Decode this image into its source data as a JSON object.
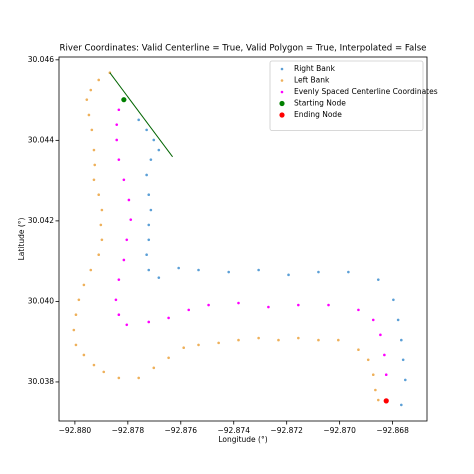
{
  "chart_data": {
    "type": "scatter",
    "title": "River Coordinates: Valid Centerline = True, Valid Polygon = True, Interpolated = False",
    "x_label": "Longitude (°)",
    "y_label": "Latitude (°)",
    "xlim": [
      -92.8806,
      -92.8667
    ],
    "ylim": [
      30.03703,
      30.04607
    ],
    "xticks": [
      {
        "value": -92.88,
        "label": "−92.880"
      },
      {
        "value": -92.878,
        "label": "−92.878"
      },
      {
        "value": -92.876,
        "label": "−92.876"
      },
      {
        "value": -92.874,
        "label": "−92.874"
      },
      {
        "value": -92.872,
        "label": "−92.872"
      },
      {
        "value": -92.87,
        "label": "−92.870"
      },
      {
        "value": -92.868,
        "label": "−92.868"
      }
    ],
    "yticks": [
      30.038,
      {
        "value": 30.04,
        "label": "30.040"
      },
      30.042,
      30.044,
      30.046
    ],
    "legend": "upper right",
    "series": [
      {
        "name": "Right Bank",
        "color": "#5b9fd6",
        "x": [
          -92.87759,
          -92.87729,
          -92.87702,
          -92.87683,
          -92.87713,
          -92.87729,
          -92.87721,
          -92.87713,
          -92.87721,
          -92.87721,
          -92.87729,
          -92.87721,
          -92.87683,
          -92.87608,
          -92.87533,
          -92.87419,
          -92.87306,
          -92.87193,
          -92.8708,
          -92.86967,
          -92.86854,
          -92.86797,
          -92.86779,
          -92.86767,
          -92.8676,
          -92.86752,
          -92.86767
        ],
        "y": [
          30.04451,
          30.04426,
          30.04401,
          30.04376,
          30.04352,
          30.04314,
          30.04265,
          30.04227,
          30.0419,
          30.04153,
          30.04116,
          30.04078,
          30.04059,
          30.04083,
          30.04078,
          30.04073,
          30.04078,
          30.04066,
          30.04073,
          30.04073,
          30.04054,
          30.04004,
          30.03954,
          30.03904,
          30.03855,
          30.03805,
          30.03743
        ]
      },
      {
        "name": "Left Bank",
        "color": "#eeb05a",
        "x": [
          -92.87868,
          -92.8791,
          -92.8794,
          -92.87955,
          -92.87947,
          -92.87936,
          -92.87928,
          -92.87925,
          -92.87928,
          -92.8791,
          -92.87898,
          -92.87902,
          -92.87898,
          -92.8791,
          -92.8794,
          -92.87966,
          -92.87985,
          -92.87996,
          -92.88004,
          -92.87996,
          -92.87966,
          -92.87928,
          -92.87891,
          -92.87834,
          -92.87759,
          -92.87702,
          -92.87646,
          -92.87589,
          -92.87533,
          -92.87457,
          -92.87382,
          -92.87306,
          -92.87231,
          -92.87156,
          -92.8708,
          -92.87005,
          -92.86929,
          -92.86892,
          -92.86873,
          -92.86865,
          -92.86854
        ],
        "y": [
          30.04568,
          30.0455,
          30.04525,
          30.04501,
          30.04463,
          30.04426,
          30.04376,
          30.04339,
          30.04302,
          30.04265,
          30.04227,
          30.0419,
          30.04153,
          30.04116,
          30.04078,
          30.04041,
          30.04004,
          30.03967,
          30.03929,
          30.03892,
          30.03867,
          30.03842,
          30.03825,
          30.0381,
          30.0381,
          30.03835,
          30.0386,
          30.03885,
          30.03892,
          30.03897,
          30.03904,
          30.03909,
          30.03904,
          30.03909,
          30.03904,
          30.03904,
          30.0388,
          30.03855,
          30.03818,
          30.0378,
          30.03755
        ]
      },
      {
        "name": "Evenly Spaced Centerline Coordinates",
        "color": "#ff00ff",
        "x": [
          -92.87815,
          -92.87834,
          -92.87842,
          -92.87842,
          -92.87834,
          -92.87815,
          -92.87796,
          -92.87789,
          -92.87804,
          -92.87815,
          -92.87834,
          -92.87845,
          -92.87834,
          -92.87804,
          -92.87721,
          -92.87646,
          -92.8757,
          -92.87495,
          -92.87382,
          -92.87269,
          -92.87156,
          -92.87042,
          -92.86929,
          -92.86873,
          -92.86846,
          -92.86831,
          -92.86824,
          -92.8682
        ],
        "y": [
          30.04501,
          30.04476,
          30.04439,
          30.04401,
          30.04352,
          30.04302,
          30.04252,
          30.04203,
          30.04153,
          30.04103,
          30.04054,
          30.04004,
          30.03967,
          30.03942,
          30.03949,
          30.03959,
          30.03979,
          30.03991,
          30.03996,
          30.03986,
          30.03991,
          30.03991,
          30.03979,
          30.03954,
          30.03917,
          30.03867,
          30.03818,
          30.03755
        ]
      },
      {
        "name": "Starting Node",
        "color": "#008000",
        "x": [
          -92.87815
        ],
        "y": [
          30.04501
        ]
      },
      {
        "name": "Ending Node",
        "color": "#ff0000",
        "x": [
          -92.86824
        ],
        "y": [
          30.03753
        ]
      },
      {
        "style": "line",
        "color": "#006400",
        "x": [
          -92.87868,
          -92.87631
        ],
        "y": [
          30.04568,
          30.04359
        ]
      }
    ]
  }
}
